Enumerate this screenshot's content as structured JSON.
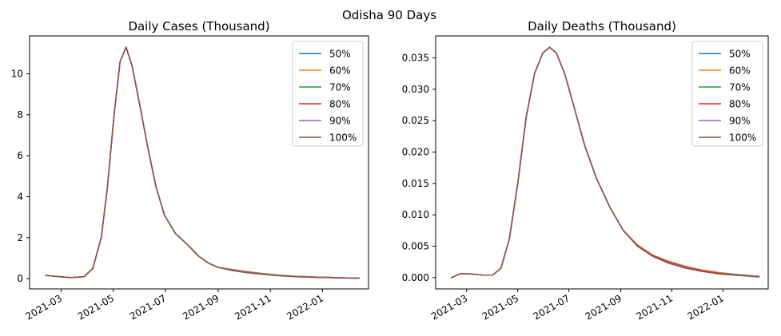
{
  "figure_title": "Odisha 90 Days",
  "chart_data": [
    {
      "type": "line",
      "title": "Daily Cases (Thousand)",
      "xlabel": "",
      "ylabel": "",
      "x_type": "date",
      "xlim": [
        "2022-02-01",
        "2022-02-15"
      ],
      "ylim": [
        -0.5,
        11.85
      ],
      "yticks": [
        0,
        2,
        4,
        6,
        8,
        10
      ],
      "xticks": [
        "2021-03-01",
        "2021-05-01",
        "2021-07-01",
        "2021-09-01",
        "2021-11-01",
        "2022-01-01"
      ],
      "xtick_labels": [
        "2021-03",
        "2021-05",
        "2021-07",
        "2021-09",
        "2021-11",
        "2022-01"
      ],
      "legend_position": "top-right",
      "grid": false,
      "x": [
        "2021-02-11",
        "2021-02-26",
        "2021-03-13",
        "2021-03-28",
        "2021-04-07",
        "2021-04-17",
        "2021-04-24",
        "2021-05-02",
        "2021-05-09",
        "2021-05-16",
        "2021-05-23",
        "2021-06-01",
        "2021-06-10",
        "2021-06-20",
        "2021-06-30",
        "2021-07-13",
        "2021-07-26",
        "2021-08-09",
        "2021-08-21",
        "2021-09-01",
        "2021-09-17",
        "2021-10-03",
        "2021-10-23",
        "2021-11-13",
        "2021-12-03",
        "2021-12-23",
        "2022-01-12",
        "2022-01-26",
        "2022-02-13"
      ],
      "series": [
        {
          "name": "50%",
          "color": "#1f77b4",
          "values": [
            0.16,
            0.1,
            0.05,
            0.1,
            0.5,
            2.0,
            4.4,
            8.0,
            10.6,
            11.3,
            10.4,
            8.5,
            6.5,
            4.5,
            3.1,
            2.2,
            1.7,
            1.1,
            0.75,
            0.55,
            0.45,
            0.35,
            0.25,
            0.16,
            0.11,
            0.08,
            0.06,
            0.04,
            0.02
          ]
        },
        {
          "name": "60%",
          "color": "#ff7f0e",
          "values": [
            0.16,
            0.1,
            0.05,
            0.1,
            0.5,
            2.0,
            4.4,
            8.0,
            10.6,
            11.3,
            10.4,
            8.5,
            6.5,
            4.5,
            3.1,
            2.2,
            1.7,
            1.1,
            0.75,
            0.55,
            0.44,
            0.34,
            0.25,
            0.16,
            0.11,
            0.08,
            0.06,
            0.04,
            0.02
          ]
        },
        {
          "name": "70%",
          "color": "#2ca02c",
          "values": [
            0.16,
            0.1,
            0.05,
            0.1,
            0.5,
            2.0,
            4.4,
            8.0,
            10.6,
            11.3,
            10.4,
            8.5,
            6.5,
            4.5,
            3.1,
            2.2,
            1.7,
            1.1,
            0.75,
            0.55,
            0.43,
            0.33,
            0.24,
            0.16,
            0.11,
            0.08,
            0.06,
            0.04,
            0.02
          ]
        },
        {
          "name": "80%",
          "color": "#d62728",
          "values": [
            0.16,
            0.1,
            0.05,
            0.1,
            0.5,
            2.0,
            4.4,
            8.0,
            10.6,
            11.3,
            10.4,
            8.5,
            6.5,
            4.5,
            3.1,
            2.2,
            1.7,
            1.1,
            0.75,
            0.55,
            0.42,
            0.32,
            0.23,
            0.15,
            0.1,
            0.07,
            0.05,
            0.04,
            0.02
          ]
        },
        {
          "name": "90%",
          "color": "#9467bd",
          "values": [
            0.16,
            0.1,
            0.05,
            0.1,
            0.5,
            2.0,
            4.4,
            8.0,
            10.6,
            11.3,
            10.4,
            8.5,
            6.5,
            4.5,
            3.1,
            2.2,
            1.7,
            1.1,
            0.75,
            0.55,
            0.41,
            0.31,
            0.22,
            0.14,
            0.1,
            0.07,
            0.05,
            0.04,
            0.02
          ]
        },
        {
          "name": "100%",
          "color": "#8c564b",
          "values": [
            0.16,
            0.1,
            0.05,
            0.1,
            0.5,
            2.0,
            4.4,
            8.0,
            10.6,
            11.3,
            10.4,
            8.5,
            6.5,
            4.5,
            3.1,
            2.2,
            1.7,
            1.1,
            0.75,
            0.55,
            0.4,
            0.3,
            0.21,
            0.14,
            0.09,
            0.06,
            0.05,
            0.03,
            0.02
          ]
        }
      ]
    },
    {
      "type": "line",
      "title": "Daily Deaths (Thousand)",
      "xlabel": "",
      "ylabel": "",
      "x_type": "date",
      "xlim": [
        "2021-01-23",
        "2022-02-24"
      ],
      "ylim": [
        -0.0018,
        0.0385
      ],
      "yticks": [
        0.0,
        0.005,
        0.01,
        0.015,
        0.02,
        0.025,
        0.03,
        0.035
      ],
      "ytick_labels": [
        "0.000",
        "0.005",
        "0.010",
        "0.015",
        "0.020",
        "0.025",
        "0.030",
        "0.035"
      ],
      "xticks": [
        "2021-03-01",
        "2021-05-01",
        "2021-07-01",
        "2021-09-01",
        "2021-11-01",
        "2022-01-01"
      ],
      "xtick_labels": [
        "2021-03",
        "2021-05",
        "2021-07",
        "2021-09",
        "2021-11",
        "2022-01"
      ],
      "legend_position": "top-right",
      "grid": false,
      "x": [
        "2021-02-11",
        "2021-02-21",
        "2021-03-05",
        "2021-03-20",
        "2021-04-01",
        "2021-04-11",
        "2021-04-21",
        "2021-05-01",
        "2021-05-11",
        "2021-05-21",
        "2021-05-31",
        "2021-06-08",
        "2021-06-16",
        "2021-06-26",
        "2021-07-08",
        "2021-07-20",
        "2021-08-03",
        "2021-08-19",
        "2021-09-04",
        "2021-09-21",
        "2021-10-09",
        "2021-10-28",
        "2021-11-17",
        "2021-12-07",
        "2021-12-27",
        "2022-01-16",
        "2022-02-13"
      ],
      "series": [
        {
          "name": "50%",
          "color": "#1f77b4",
          "values": [
            0.0,
            0.0006,
            0.0006,
            0.0004,
            0.0004,
            0.0015,
            0.0062,
            0.015,
            0.0255,
            0.0325,
            0.0358,
            0.0367,
            0.0358,
            0.0325,
            0.0268,
            0.021,
            0.0158,
            0.0112,
            0.0075,
            0.0052,
            0.0036,
            0.0026,
            0.0018,
            0.0012,
            0.0008,
            0.0005,
            0.0002
          ]
        },
        {
          "name": "60%",
          "color": "#ff7f0e",
          "values": [
            0.0,
            0.0006,
            0.0006,
            0.0004,
            0.0004,
            0.0015,
            0.0062,
            0.015,
            0.0255,
            0.0325,
            0.0358,
            0.0367,
            0.0358,
            0.0325,
            0.0268,
            0.021,
            0.0158,
            0.0112,
            0.0075,
            0.0052,
            0.0036,
            0.0026,
            0.0018,
            0.0012,
            0.0008,
            0.0005,
            0.0002
          ]
        },
        {
          "name": "70%",
          "color": "#2ca02c",
          "values": [
            0.0,
            0.0006,
            0.0006,
            0.0004,
            0.0004,
            0.0015,
            0.0062,
            0.015,
            0.0255,
            0.0325,
            0.0358,
            0.0367,
            0.0358,
            0.0325,
            0.0268,
            0.021,
            0.0158,
            0.0112,
            0.0075,
            0.0051,
            0.0035,
            0.0025,
            0.0017,
            0.0011,
            0.0007,
            0.0005,
            0.0002
          ]
        },
        {
          "name": "80%",
          "color": "#d62728",
          "values": [
            0.0,
            0.0006,
            0.0006,
            0.0004,
            0.0004,
            0.0015,
            0.0062,
            0.015,
            0.0255,
            0.0325,
            0.0358,
            0.0367,
            0.0358,
            0.0325,
            0.0268,
            0.021,
            0.0158,
            0.0112,
            0.0075,
            0.0051,
            0.0035,
            0.0025,
            0.0017,
            0.0011,
            0.0007,
            0.0004,
            0.0002
          ]
        },
        {
          "name": "90%",
          "color": "#9467bd",
          "values": [
            0.0,
            0.0006,
            0.0006,
            0.0004,
            0.0004,
            0.0015,
            0.0062,
            0.015,
            0.0255,
            0.0325,
            0.0358,
            0.0367,
            0.0358,
            0.0325,
            0.0268,
            0.021,
            0.0158,
            0.0112,
            0.0075,
            0.005,
            0.0034,
            0.0024,
            0.0016,
            0.001,
            0.0006,
            0.0004,
            0.0002
          ]
        },
        {
          "name": "100%",
          "color": "#8c564b",
          "values": [
            0.0,
            0.0006,
            0.0006,
            0.0004,
            0.0004,
            0.0015,
            0.0062,
            0.015,
            0.0255,
            0.0325,
            0.0358,
            0.0367,
            0.0358,
            0.0325,
            0.0268,
            0.021,
            0.0158,
            0.0112,
            0.0075,
            0.005,
            0.0034,
            0.0023,
            0.0015,
            0.001,
            0.0006,
            0.0004,
            0.0001
          ]
        }
      ]
    }
  ]
}
